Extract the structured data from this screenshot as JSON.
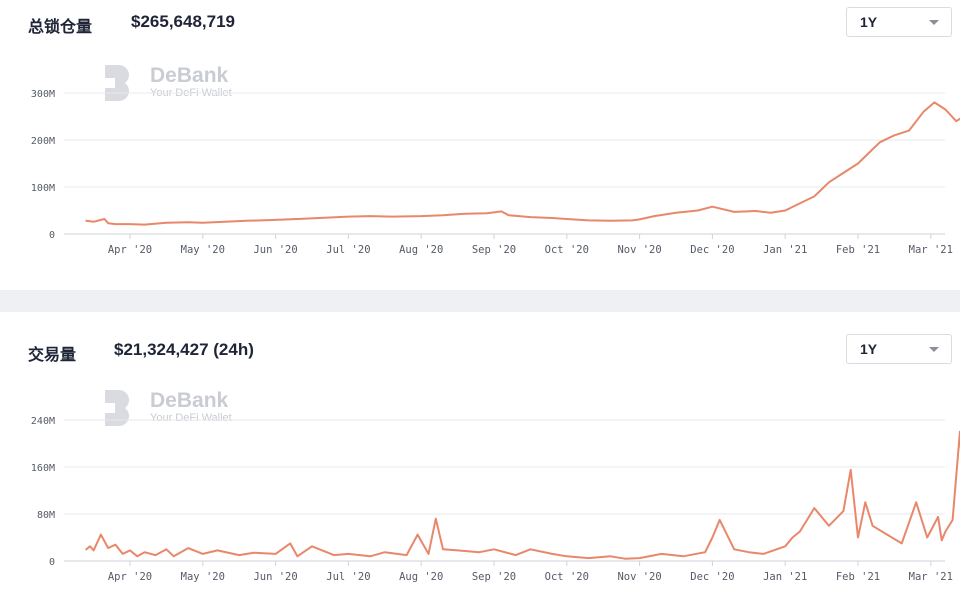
{
  "tvl_panel": {
    "title": "总锁仓量",
    "value": "$265,648,719",
    "range": "1Y"
  },
  "volume_panel": {
    "title": "交易量",
    "value": "$21,324,427 (24h)",
    "range": "1Y"
  },
  "watermark": {
    "brand": "DeBank",
    "tagline": "Your DeFi Wallet"
  },
  "colors": {
    "line": "#e8876a",
    "grid": "#e6e8ec",
    "axis_text": "#555a66",
    "watermark": "#c9ccd3"
  },
  "chart_data": [
    {
      "type": "line",
      "title": "总锁仓量",
      "x_tick_labels": [
        "Apr '20",
        "May '20",
        "Jun '20",
        "Jul '20",
        "Aug '20",
        "Sep '20",
        "Oct '20",
        "Nov '20",
        "Dec '20",
        "Jan '21",
        "Feb '21",
        "Mar '21"
      ],
      "y_tick_labels": [
        "0",
        "100M",
        "200M",
        "300M"
      ],
      "ylim": [
        0,
        300
      ],
      "y_unit": "M",
      "x": [
        -0.6,
        -0.5,
        -0.4,
        -0.35,
        -0.3,
        -0.2,
        0,
        0.2,
        0.5,
        0.8,
        1,
        1.3,
        1.6,
        2,
        2.3,
        2.6,
        3,
        3.3,
        3.6,
        4,
        4.3,
        4.6,
        4.9,
        5,
        5.1,
        5.2,
        5.5,
        5.8,
        6,
        6.3,
        6.6,
        6.9,
        7,
        7.2,
        7.5,
        7.8,
        8,
        8.3,
        8.6,
        8.8,
        9,
        9.2,
        9.4,
        9.6,
        9.8,
        10,
        10.1,
        10.3,
        10.5,
        10.7,
        10.9,
        11.05,
        11.2,
        11.35,
        11.4,
        11.5,
        11.55,
        11.6
      ],
      "values": [
        28,
        26,
        30,
        32,
        23,
        21,
        21,
        20,
        24,
        25,
        24,
        26,
        28,
        30,
        32,
        34,
        37,
        38,
        37,
        38,
        40,
        43,
        44,
        46,
        48,
        40,
        36,
        34,
        32,
        29,
        28,
        29,
        31,
        38,
        45,
        50,
        58,
        47,
        49,
        45,
        50,
        65,
        80,
        110,
        130,
        150,
        165,
        195,
        210,
        220,
        260,
        280,
        265,
        240,
        245,
        232,
        255,
        265
      ]
    },
    {
      "type": "line",
      "title": "交易量",
      "x_tick_labels": [
        "Apr '20",
        "May '20",
        "Jun '20",
        "Jul '20",
        "Aug '20",
        "Sep '20",
        "Oct '20",
        "Nov '20",
        "Dec '20",
        "Jan '21",
        "Feb '21",
        "Mar '21"
      ],
      "y_tick_labels": [
        "0",
        "80M",
        "160M",
        "240M"
      ],
      "ylim": [
        0,
        240
      ],
      "y_unit": "M",
      "x": [
        -0.6,
        -0.55,
        -0.5,
        -0.4,
        -0.3,
        -0.2,
        -0.1,
        0,
        0.1,
        0.2,
        0.35,
        0.5,
        0.6,
        0.8,
        1,
        1.2,
        1.5,
        1.7,
        2,
        2.2,
        2.3,
        2.5,
        2.8,
        3,
        3.3,
        3.5,
        3.8,
        3.95,
        4.1,
        4.2,
        4.3,
        4.5,
        4.8,
        5,
        5.3,
        5.5,
        5.8,
        6,
        6.3,
        6.6,
        6.8,
        7,
        7.3,
        7.6,
        7.9,
        8,
        8.1,
        8.3,
        8.5,
        8.7,
        9,
        9.1,
        9.2,
        9.35,
        9.4,
        9.6,
        9.8,
        9.9,
        10,
        10.1,
        10.2,
        10.4,
        10.6,
        10.8,
        10.95,
        11.1,
        11.15,
        11.2,
        11.3,
        11.4,
        11.5,
        11.55,
        11.6
      ],
      "values": [
        20,
        25,
        18,
        45,
        22,
        28,
        12,
        18,
        8,
        15,
        10,
        20,
        8,
        22,
        12,
        18,
        10,
        14,
        12,
        30,
        8,
        25,
        10,
        12,
        8,
        15,
        10,
        45,
        12,
        72,
        20,
        18,
        15,
        20,
        10,
        20,
        12,
        8,
        5,
        8,
        4,
        5,
        12,
        8,
        15,
        40,
        70,
        20,
        15,
        12,
        25,
        40,
        50,
        80,
        90,
        60,
        85,
        155,
        40,
        100,
        60,
        45,
        30,
        100,
        40,
        75,
        35,
        50,
        70,
        220,
        20,
        60,
        10
      ]
    }
  ]
}
